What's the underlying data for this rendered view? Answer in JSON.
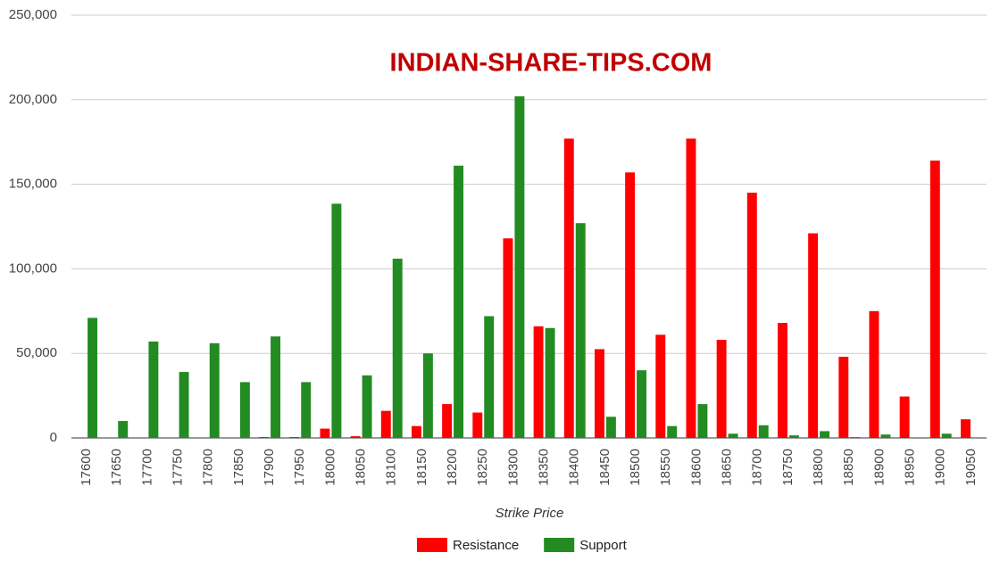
{
  "chart_data": {
    "type": "bar",
    "title": "INDIAN-SHARE-TIPS.COM",
    "x_label": "Strike Price",
    "categories": [
      "17600",
      "17650",
      "17700",
      "17750",
      "17800",
      "17850",
      "17900",
      "17950",
      "18000",
      "18050",
      "18100",
      "18150",
      "18200",
      "18250",
      "18300",
      "18350",
      "18400",
      "18450",
      "18500",
      "18550",
      "18600",
      "18650",
      "18700",
      "18750",
      "18800",
      "18850",
      "18900",
      "18950",
      "19000",
      "19050"
    ],
    "series": [
      {
        "name": "Resistance",
        "color": "#ff0000",
        "values": [
          0,
          0,
          0,
          0,
          0,
          0,
          500,
          500,
          5500,
          1000,
          16000,
          7000,
          20000,
          15000,
          118000,
          66000,
          177000,
          52500,
          157000,
          61000,
          177000,
          58000,
          145000,
          68000,
          121000,
          48000,
          75000,
          24500,
          164000,
          11000
        ]
      },
      {
        "name": "Support",
        "color": "#228b22",
        "values": [
          71000,
          10000,
          57000,
          39000,
          56000,
          33000,
          60000,
          33000,
          138500,
          37000,
          106000,
          50000,
          161000,
          72000,
          202000,
          65000,
          127000,
          12500,
          40000,
          7000,
          20000,
          2500,
          7500,
          1500,
          4000,
          500,
          2000,
          0,
          2500,
          0
        ]
      }
    ],
    "ylim": [
      0,
      250000
    ],
    "yticks": [
      0,
      {
        "value": 50000,
        "label": "50,000"
      },
      {
        "value": 100000,
        "label": "100,000"
      },
      {
        "value": 150000,
        "label": "150,000"
      },
      {
        "value": 200000,
        "label": "200,000"
      },
      {
        "value": 250000,
        "label": "250,000"
      }
    ],
    "grid": true,
    "legend": "bottom"
  }
}
